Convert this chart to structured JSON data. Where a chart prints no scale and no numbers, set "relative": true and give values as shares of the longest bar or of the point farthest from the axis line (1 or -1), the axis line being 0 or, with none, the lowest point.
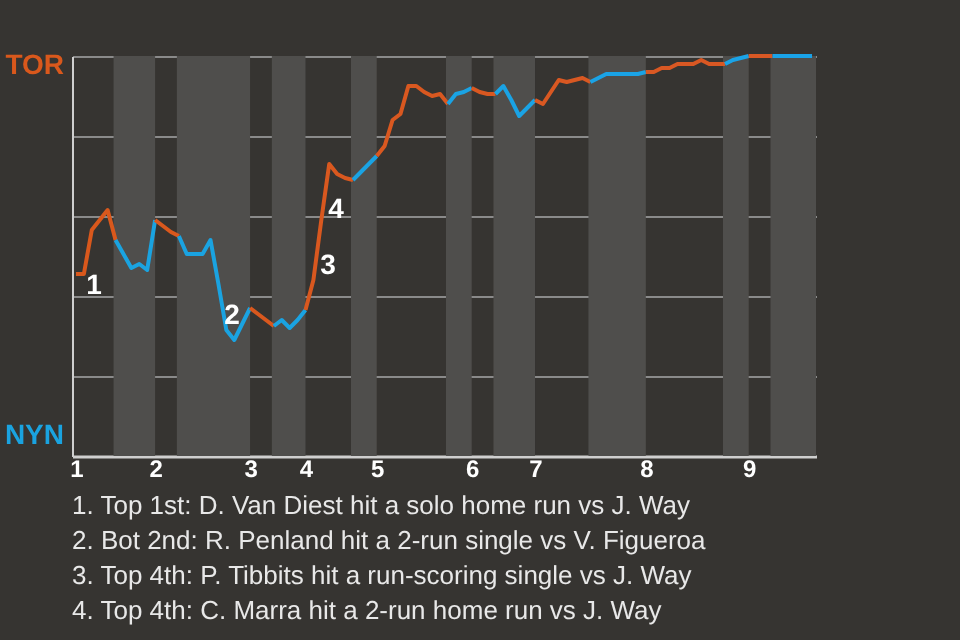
{
  "chart_data": {
    "type": "line",
    "relative": true,
    "categories": [
      "1",
      null,
      null,
      null,
      null,
      null,
      null,
      null,
      null,
      null,
      "2",
      null,
      null,
      null,
      null,
      null,
      null,
      null,
      null,
      null,
      null,
      null,
      "3",
      null,
      null,
      null,
      null,
      null,
      null,
      "4",
      null,
      null,
      null,
      null,
      null,
      null,
      null,
      null,
      "5",
      null,
      null,
      null,
      null,
      null,
      null,
      null,
      null,
      null,
      null,
      null,
      "6",
      null,
      null,
      null,
      null,
      null,
      null,
      null,
      "7",
      null,
      null,
      null,
      null,
      null,
      null,
      null,
      null,
      null,
      null,
      null,
      null,
      null,
      "8",
      null,
      null,
      null,
      null,
      null,
      null,
      null,
      null,
      null,
      null,
      null,
      null,
      "9",
      null,
      null,
      null,
      null,
      null,
      null,
      null,
      null
    ],
    "series": [
      {
        "color": "#d9581c",
        "values": [
          0.455,
          0.455,
          0.565,
          0.59,
          0.615,
          0.54,
          null,
          null,
          null,
          null,
          null,
          null,
          null,
          null,
          null,
          null,
          null,
          null,
          null,
          null,
          null,
          null,
          null,
          null,
          null,
          null,
          null,
          null,
          null,
          null,
          null,
          null,
          null,
          null,
          null,
          null,
          null,
          null,
          null,
          null,
          null,
          null,
          null,
          null,
          null,
          null,
          null,
          null,
          null,
          null,
          null,
          null,
          null,
          null,
          null,
          null,
          null,
          null,
          null,
          null,
          null,
          null,
          null,
          null,
          null,
          null,
          null,
          null,
          null,
          null,
          null,
          null,
          null,
          null,
          null,
          null,
          null,
          null,
          null,
          null,
          null,
          null,
          null,
          null,
          null,
          null,
          null,
          null,
          null,
          null,
          null,
          null,
          null,
          null
        ]
      },
      {
        "color": "#1aa3e0",
        "values": [
          null,
          null,
          null,
          null,
          null,
          0.54,
          0.505,
          0.47,
          0.48,
          0.465,
          0.59,
          null,
          null,
          null,
          null,
          null,
          null,
          null,
          null,
          null,
          null,
          null,
          null,
          null,
          null,
          null,
          null,
          null,
          null,
          null,
          null,
          null,
          null,
          null,
          null,
          null,
          null,
          null,
          null,
          null,
          null,
          null,
          null,
          null,
          null,
          null,
          null,
          null,
          null,
          null,
          null,
          null,
          null,
          null,
          null,
          null,
          null,
          null,
          null,
          null,
          null,
          null,
          null,
          null,
          null,
          null,
          null,
          null,
          null,
          null,
          null,
          null,
          null,
          null,
          null,
          null,
          null,
          null,
          null,
          null,
          null,
          null,
          null,
          null,
          null,
          null,
          null,
          null,
          null,
          null,
          null,
          null,
          null,
          null
        ]
      },
      {
        "color": "#d9581d",
        "values": [
          null,
          null,
          null,
          null,
          null,
          null,
          null,
          null,
          null,
          null,
          0.59,
          0.575,
          0.56,
          0.55,
          null,
          null,
          null,
          null,
          null,
          null,
          null,
          null,
          null,
          null,
          null,
          null,
          null,
          null,
          null,
          null,
          null,
          null,
          null,
          null,
          null,
          null,
          null,
          null,
          null,
          null,
          null,
          null,
          null,
          null,
          null,
          null,
          null,
          null,
          null,
          null,
          null,
          null,
          null,
          null,
          null,
          null,
          null,
          null,
          null,
          null,
          null,
          null,
          null,
          null,
          null,
          null,
          null,
          null,
          null,
          null,
          null,
          null,
          null,
          null,
          null,
          null,
          null,
          null,
          null,
          null,
          null,
          null,
          null,
          null,
          null,
          null,
          null,
          null,
          null,
          null,
          null,
          null,
          null,
          null
        ]
      },
      {
        "color": "#1aa3e1",
        "values": [
          null,
          null,
          null,
          null,
          null,
          null,
          null,
          null,
          null,
          null,
          null,
          null,
          null,
          0.55,
          0.505,
          0.505,
          0.505,
          0.54,
          0.43,
          0.315,
          0.29,
          0.33,
          0.37,
          null,
          null,
          null,
          null,
          null,
          null,
          null,
          null,
          null,
          null,
          null,
          null,
          null,
          null,
          null,
          null,
          null,
          null,
          null,
          null,
          null,
          null,
          null,
          null,
          null,
          null,
          null,
          null,
          null,
          null,
          null,
          null,
          null,
          null,
          null,
          null,
          null,
          null,
          null,
          null,
          null,
          null,
          null,
          null,
          null,
          null,
          null,
          null,
          null,
          null,
          null,
          null,
          null,
          null,
          null,
          null,
          null,
          null,
          null,
          null,
          null,
          null,
          null,
          null,
          null,
          null,
          null,
          null,
          null,
          null,
          null
        ]
      },
      {
        "color": "#d9581e",
        "values": [
          null,
          null,
          null,
          null,
          null,
          null,
          null,
          null,
          null,
          null,
          null,
          null,
          null,
          null,
          null,
          null,
          null,
          null,
          null,
          null,
          null,
          null,
          0.37,
          0.355,
          0.34,
          0.325,
          null,
          null,
          null,
          null,
          null,
          null,
          null,
          null,
          null,
          null,
          null,
          null,
          null,
          null,
          null,
          null,
          null,
          null,
          null,
          null,
          null,
          null,
          null,
          null,
          null,
          null,
          null,
          null,
          null,
          null,
          null,
          null,
          null,
          null,
          null,
          null,
          null,
          null,
          null,
          null,
          null,
          null,
          null,
          null,
          null,
          null,
          null,
          null,
          null,
          null,
          null,
          null,
          null,
          null,
          null,
          null,
          null,
          null,
          null,
          null,
          null,
          null,
          null,
          null,
          null,
          null,
          null,
          null
        ]
      },
      {
        "color": "#1aa3e2",
        "values": [
          null,
          null,
          null,
          null,
          null,
          null,
          null,
          null,
          null,
          null,
          null,
          null,
          null,
          null,
          null,
          null,
          null,
          null,
          null,
          null,
          null,
          null,
          null,
          null,
          null,
          0.325,
          0.34,
          0.32,
          0.34,
          0.365,
          null,
          null,
          null,
          null,
          null,
          null,
          null,
          null,
          null,
          null,
          null,
          null,
          null,
          null,
          null,
          null,
          null,
          null,
          null,
          null,
          null,
          null,
          null,
          null,
          null,
          null,
          null,
          null,
          null,
          null,
          null,
          null,
          null,
          null,
          null,
          null,
          null,
          null,
          null,
          null,
          null,
          null,
          null,
          null,
          null,
          null,
          null,
          null,
          null,
          null,
          null,
          null,
          null,
          null,
          null,
          null,
          null,
          null,
          null,
          null,
          null,
          null,
          null,
          null
        ]
      },
      {
        "color": "#d9581f",
        "values": [
          null,
          null,
          null,
          null,
          null,
          null,
          null,
          null,
          null,
          null,
          null,
          null,
          null,
          null,
          null,
          null,
          null,
          null,
          null,
          null,
          null,
          null,
          null,
          null,
          null,
          null,
          null,
          null,
          null,
          0.365,
          0.44,
          0.59,
          0.73,
          0.705,
          0.695,
          0.69,
          null,
          null,
          null,
          null,
          null,
          null,
          null,
          null,
          null,
          null,
          null,
          null,
          null,
          null,
          null,
          null,
          null,
          null,
          null,
          null,
          null,
          null,
          null,
          null,
          null,
          null,
          null,
          null,
          null,
          null,
          null,
          null,
          null,
          null,
          null,
          null,
          null,
          null,
          null,
          null,
          null,
          null,
          null,
          null,
          null,
          null,
          null,
          null,
          null,
          null,
          null,
          null,
          null,
          null,
          null,
          null,
          null,
          null
        ]
      },
      {
        "color": "#1aa3e3",
        "values": [
          null,
          null,
          null,
          null,
          null,
          null,
          null,
          null,
          null,
          null,
          null,
          null,
          null,
          null,
          null,
          null,
          null,
          null,
          null,
          null,
          null,
          null,
          null,
          null,
          null,
          null,
          null,
          null,
          null,
          null,
          null,
          null,
          null,
          null,
          null,
          0.69,
          0.71,
          0.73,
          0.75,
          null,
          null,
          null,
          null,
          null,
          null,
          null,
          null,
          null,
          null,
          null,
          null,
          null,
          null,
          null,
          null,
          null,
          null,
          null,
          null,
          null,
          null,
          null,
          null,
          null,
          null,
          null,
          null,
          null,
          null,
          null,
          null,
          null,
          null,
          null,
          null,
          null,
          null,
          null,
          null,
          null,
          null,
          null,
          null,
          null,
          null,
          null,
          null,
          null,
          null,
          null,
          null,
          null,
          null,
          null
        ]
      },
      {
        "color": "#d95820",
        "values": [
          null,
          null,
          null,
          null,
          null,
          null,
          null,
          null,
          null,
          null,
          null,
          null,
          null,
          null,
          null,
          null,
          null,
          null,
          null,
          null,
          null,
          null,
          null,
          null,
          null,
          null,
          null,
          null,
          null,
          null,
          null,
          null,
          null,
          null,
          null,
          null,
          null,
          null,
          0.75,
          0.775,
          0.84,
          0.855,
          0.925,
          0.925,
          0.91,
          0.9,
          0.905,
          0.88,
          null,
          null,
          null,
          null,
          null,
          null,
          null,
          null,
          null,
          null,
          null,
          null,
          null,
          null,
          null,
          null,
          null,
          null,
          null,
          null,
          null,
          null,
          null,
          null,
          null,
          null,
          null,
          null,
          null,
          null,
          null,
          null,
          null,
          null,
          null,
          null,
          null,
          null,
          null,
          null,
          null,
          null,
          null,
          null,
          null,
          null
        ]
      },
      {
        "color": "#1aa3e4",
        "values": [
          null,
          null,
          null,
          null,
          null,
          null,
          null,
          null,
          null,
          null,
          null,
          null,
          null,
          null,
          null,
          null,
          null,
          null,
          null,
          null,
          null,
          null,
          null,
          null,
          null,
          null,
          null,
          null,
          null,
          null,
          null,
          null,
          null,
          null,
          null,
          null,
          null,
          null,
          null,
          null,
          null,
          null,
          null,
          null,
          null,
          null,
          null,
          0.88,
          0.905,
          0.91,
          0.92,
          null,
          null,
          null,
          null,
          null,
          null,
          null,
          null,
          null,
          null,
          null,
          null,
          null,
          null,
          null,
          null,
          null,
          null,
          null,
          null,
          null,
          null,
          null,
          null,
          null,
          null,
          null,
          null,
          null,
          null,
          null,
          null,
          null,
          null,
          null,
          null,
          null,
          null,
          null,
          null,
          null,
          null,
          null
        ]
      },
      {
        "color": "#d95821",
        "values": [
          null,
          null,
          null,
          null,
          null,
          null,
          null,
          null,
          null,
          null,
          null,
          null,
          null,
          null,
          null,
          null,
          null,
          null,
          null,
          null,
          null,
          null,
          null,
          null,
          null,
          null,
          null,
          null,
          null,
          null,
          null,
          null,
          null,
          null,
          null,
          null,
          null,
          null,
          null,
          null,
          null,
          null,
          null,
          null,
          null,
          null,
          null,
          null,
          null,
          null,
          0.92,
          0.91,
          0.905,
          0.905,
          null,
          null,
          null,
          null,
          null,
          null,
          null,
          null,
          null,
          null,
          null,
          null,
          null,
          null,
          null,
          null,
          null,
          null,
          null,
          null,
          null,
          null,
          null,
          null,
          null,
          null,
          null,
          null,
          null,
          null,
          null,
          null,
          null,
          null,
          null,
          null,
          null,
          null,
          null,
          null
        ]
      },
      {
        "color": "#1aa3e5",
        "values": [
          null,
          null,
          null,
          null,
          null,
          null,
          null,
          null,
          null,
          null,
          null,
          null,
          null,
          null,
          null,
          null,
          null,
          null,
          null,
          null,
          null,
          null,
          null,
          null,
          null,
          null,
          null,
          null,
          null,
          null,
          null,
          null,
          null,
          null,
          null,
          null,
          null,
          null,
          null,
          null,
          null,
          null,
          null,
          null,
          null,
          null,
          null,
          null,
          null,
          null,
          null,
          null,
          null,
          0.905,
          0.925,
          0.89,
          0.85,
          0.87,
          0.89,
          null,
          null,
          null,
          null,
          null,
          null,
          null,
          null,
          null,
          null,
          null,
          null,
          null,
          null,
          null,
          null,
          null,
          null,
          null,
          null,
          null,
          null,
          null,
          null,
          null,
          null,
          null,
          null,
          null,
          null,
          null,
          null,
          null,
          null,
          null
        ]
      },
      {
        "color": "#d95822",
        "values": [
          null,
          null,
          null,
          null,
          null,
          null,
          null,
          null,
          null,
          null,
          null,
          null,
          null,
          null,
          null,
          null,
          null,
          null,
          null,
          null,
          null,
          null,
          null,
          null,
          null,
          null,
          null,
          null,
          null,
          null,
          null,
          null,
          null,
          null,
          null,
          null,
          null,
          null,
          null,
          null,
          null,
          null,
          null,
          null,
          null,
          null,
          null,
          null,
          null,
          null,
          null,
          null,
          null,
          null,
          null,
          null,
          null,
          null,
          0.89,
          0.88,
          0.91,
          0.94,
          0.935,
          0.94,
          0.945,
          0.935,
          null,
          null,
          null,
          null,
          null,
          null,
          null,
          null,
          null,
          null,
          null,
          null,
          null,
          null,
          null,
          null,
          null,
          null,
          null,
          null,
          null,
          null,
          null,
          null,
          null,
          null,
          null,
          null
        ]
      },
      {
        "color": "#1aa3e6",
        "values": [
          null,
          null,
          null,
          null,
          null,
          null,
          null,
          null,
          null,
          null,
          null,
          null,
          null,
          null,
          null,
          null,
          null,
          null,
          null,
          null,
          null,
          null,
          null,
          null,
          null,
          null,
          null,
          null,
          null,
          null,
          null,
          null,
          null,
          null,
          null,
          null,
          null,
          null,
          null,
          null,
          null,
          null,
          null,
          null,
          null,
          null,
          null,
          null,
          null,
          null,
          null,
          null,
          null,
          null,
          null,
          null,
          null,
          null,
          null,
          null,
          null,
          null,
          null,
          null,
          null,
          0.935,
          0.945,
          0.955,
          0.955,
          0.955,
          0.955,
          0.955,
          0.96,
          null,
          null,
          null,
          null,
          null,
          null,
          null,
          null,
          null,
          null,
          null,
          null,
          null,
          null,
          null,
          null,
          null,
          null,
          null,
          null,
          null
        ]
      },
      {
        "color": "#d95823",
        "values": [
          null,
          null,
          null,
          null,
          null,
          null,
          null,
          null,
          null,
          null,
          null,
          null,
          null,
          null,
          null,
          null,
          null,
          null,
          null,
          null,
          null,
          null,
          null,
          null,
          null,
          null,
          null,
          null,
          null,
          null,
          null,
          null,
          null,
          null,
          null,
          null,
          null,
          null,
          null,
          null,
          null,
          null,
          null,
          null,
          null,
          null,
          null,
          null,
          null,
          null,
          null,
          null,
          null,
          null,
          null,
          null,
          null,
          null,
          null,
          null,
          null,
          null,
          null,
          null,
          null,
          null,
          null,
          null,
          null,
          null,
          null,
          null,
          0.96,
          0.96,
          0.97,
          0.97,
          0.98,
          0.98,
          0.98,
          0.99,
          0.98,
          0.98,
          0.98,
          null,
          null,
          null,
          null,
          null,
          null,
          null,
          null,
          null,
          null,
          null
        ]
      },
      {
        "color": "#1aa3e7",
        "values": [
          null,
          null,
          null,
          null,
          null,
          null,
          null,
          null,
          null,
          null,
          null,
          null,
          null,
          null,
          null,
          null,
          null,
          null,
          null,
          null,
          null,
          null,
          null,
          null,
          null,
          null,
          null,
          null,
          null,
          null,
          null,
          null,
          null,
          null,
          null,
          null,
          null,
          null,
          null,
          null,
          null,
          null,
          null,
          null,
          null,
          null,
          null,
          null,
          null,
          null,
          null,
          null,
          null,
          null,
          null,
          null,
          null,
          null,
          null,
          null,
          null,
          null,
          null,
          null,
          null,
          null,
          null,
          null,
          null,
          null,
          null,
          null,
          null,
          null,
          null,
          null,
          null,
          null,
          null,
          null,
          null,
          null,
          0.98,
          0.99,
          0.995,
          1,
          null,
          null,
          null,
          null,
          null,
          null,
          null,
          null
        ]
      },
      {
        "color": "#d95824",
        "values": [
          null,
          null,
          null,
          null,
          null,
          null,
          null,
          null,
          null,
          null,
          null,
          null,
          null,
          null,
          null,
          null,
          null,
          null,
          null,
          null,
          null,
          null,
          null,
          null,
          null,
          null,
          null,
          null,
          null,
          null,
          null,
          null,
          null,
          null,
          null,
          null,
          null,
          null,
          null,
          null,
          null,
          null,
          null,
          null,
          null,
          null,
          null,
          null,
          null,
          null,
          null,
          null,
          null,
          null,
          null,
          null,
          null,
          null,
          null,
          null,
          null,
          null,
          null,
          null,
          null,
          null,
          null,
          null,
          null,
          null,
          null,
          null,
          null,
          null,
          null,
          null,
          null,
          null,
          null,
          null,
          null,
          null,
          null,
          null,
          null,
          1,
          1,
          1,
          1,
          null,
          null,
          null,
          null,
          null
        ]
      },
      {
        "color": "#1aa3e8",
        "values": [
          null,
          null,
          null,
          null,
          null,
          null,
          null,
          null,
          null,
          null,
          null,
          null,
          null,
          null,
          null,
          null,
          null,
          null,
          null,
          null,
          null,
          null,
          null,
          null,
          null,
          null,
          null,
          null,
          null,
          null,
          null,
          null,
          null,
          null,
          null,
          null,
          null,
          null,
          null,
          null,
          null,
          null,
          null,
          null,
          null,
          null,
          null,
          null,
          null,
          null,
          null,
          null,
          null,
          null,
          null,
          null,
          null,
          null,
          null,
          null,
          null,
          null,
          null,
          null,
          null,
          null,
          null,
          null,
          null,
          null,
          null,
          null,
          null,
          null,
          null,
          null,
          null,
          null,
          null,
          null,
          null,
          null,
          null,
          null,
          null,
          null,
          null,
          null,
          1,
          1,
          1,
          1,
          1,
          1
        ]
      }
    ],
    "grid": "y",
    "annotations": [
      "TOR",
      "NYN",
      "1",
      "2",
      "3",
      "4",
      "1. Top 1st: D. Van Diest hit a solo home run vs J. Way",
      "2. Bot 2nd: R. Penland hit a 2-run single vs V. Figueroa",
      "3. Top 4th: P. Tibbits hit a run-scoring single vs J. Way",
      "4. Top 4th: C. Marra hit a 2-run home run vs J. Way"
    ]
  }
}
